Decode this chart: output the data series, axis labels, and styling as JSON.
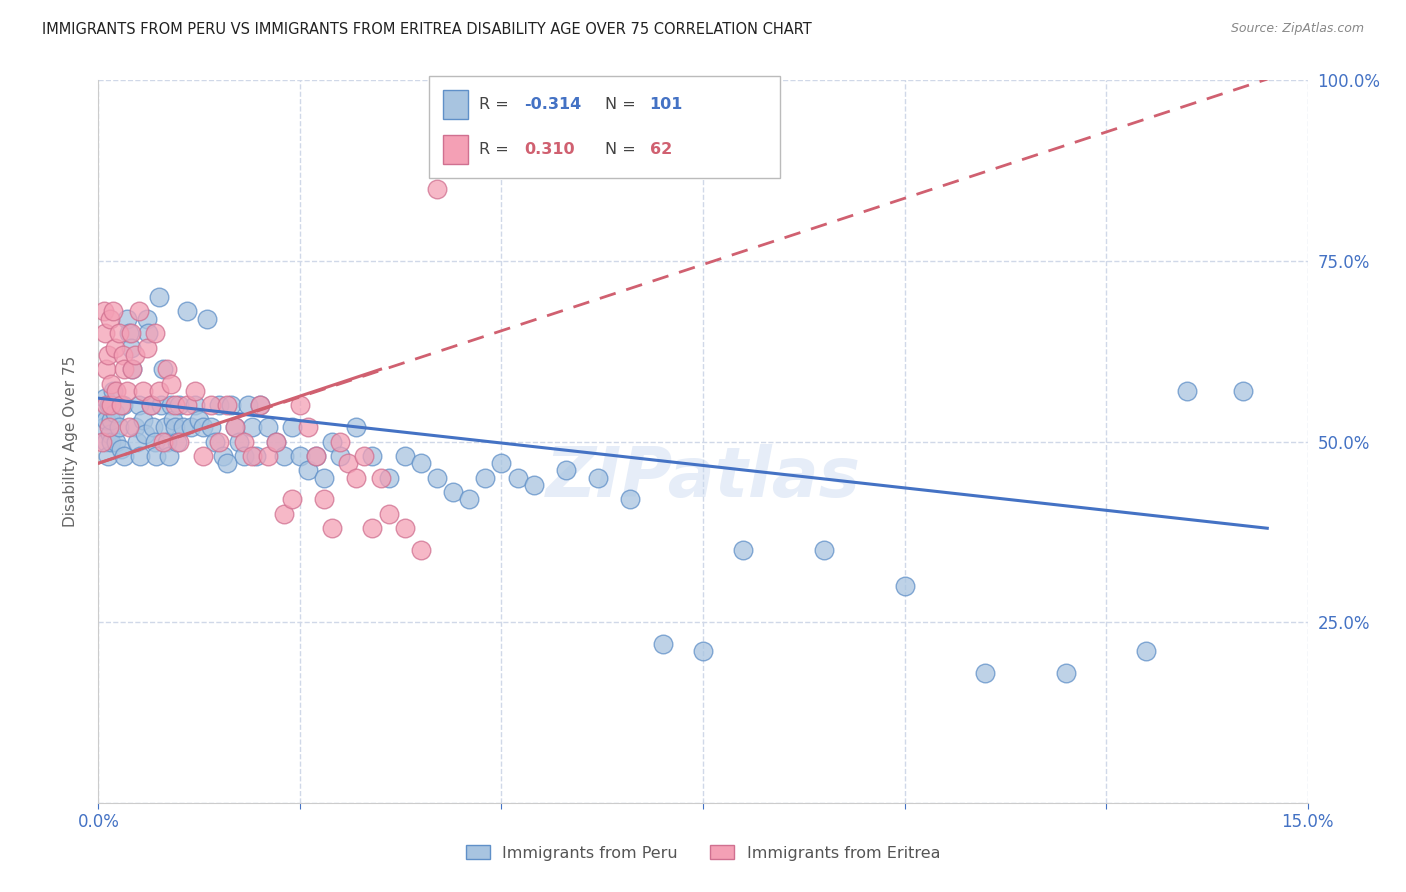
{
  "title": "IMMIGRANTS FROM PERU VS IMMIGRANTS FROM ERITREA DISABILITY AGE OVER 75 CORRELATION CHART",
  "source": "Source: ZipAtlas.com",
  "ylabel": "Disability Age Over 75",
  "legend_labels": [
    "Immigrants from Peru",
    "Immigrants from Eritrea"
  ],
  "color_peru": "#a8c4e0",
  "color_eritrea": "#f4a0b5",
  "color_peru_edge": "#6090c8",
  "color_eritrea_edge": "#d07090",
  "color_peru_line": "#4472c4",
  "color_eritrea_line": "#d06070",
  "color_axis_labels": "#4472c4",
  "watermark": "ZIPatlas",
  "xlim": [
    0.0,
    15.0
  ],
  "ylim": [
    0.0,
    100.0
  ],
  "peru_line_x0": 0.0,
  "peru_line_y0": 56.0,
  "peru_line_x1": 14.5,
  "peru_line_y1": 38.0,
  "eritrea_solid_x0": 0.0,
  "eritrea_solid_y0": 47.0,
  "eritrea_solid_x1": 3.5,
  "eritrea_solid_y1": 60.0,
  "eritrea_dash_x0": 0.0,
  "eritrea_dash_y0": 47.0,
  "eritrea_dash_x1": 15.0,
  "eritrea_dash_y1": 102.0,
  "background_color": "#ffffff",
  "grid_color": "#d0d8e8",
  "peru_x": [
    0.05,
    0.07,
    0.08,
    0.09,
    0.1,
    0.12,
    0.13,
    0.14,
    0.15,
    0.16,
    0.18,
    0.2,
    0.22,
    0.25,
    0.28,
    0.3,
    0.32,
    0.35,
    0.38,
    0.4,
    0.42,
    0.45,
    0.48,
    0.5,
    0.52,
    0.55,
    0.58,
    0.6,
    0.62,
    0.65,
    0.68,
    0.7,
    0.72,
    0.75,
    0.78,
    0.8,
    0.82,
    0.85,
    0.88,
    0.9,
    0.92,
    0.95,
    0.98,
    1.0,
    1.05,
    1.1,
    1.15,
    1.2,
    1.25,
    1.3,
    1.35,
    1.4,
    1.45,
    1.5,
    1.55,
    1.6,
    1.65,
    1.7,
    1.75,
    1.8,
    1.85,
    1.9,
    1.95,
    2.0,
    2.1,
    2.2,
    2.3,
    2.4,
    2.5,
    2.6,
    2.7,
    2.8,
    2.9,
    3.0,
    3.2,
    3.4,
    3.6,
    3.8,
    4.0,
    4.2,
    4.4,
    4.6,
    4.8,
    5.0,
    5.2,
    5.4,
    5.8,
    6.2,
    6.6,
    7.0,
    7.5,
    8.0,
    9.0,
    10.0,
    11.0,
    12.0,
    13.0,
    13.5,
    14.2
  ],
  "peru_y": [
    54,
    52,
    56,
    50,
    53,
    48,
    55,
    51,
    50,
    53,
    57,
    54,
    50,
    52,
    49,
    55,
    48,
    67,
    65,
    63,
    60,
    52,
    50,
    55,
    48,
    53,
    51,
    67,
    65,
    55,
    52,
    50,
    48,
    70,
    55,
    60,
    52,
    50,
    48,
    55,
    53,
    52,
    50,
    55,
    52,
    68,
    52,
    55,
    53,
    52,
    67,
    52,
    50,
    55,
    48,
    47,
    55,
    52,
    50,
    48,
    55,
    52,
    48,
    55,
    52,
    50,
    48,
    52,
    48,
    46,
    48,
    45,
    50,
    48,
    52,
    48,
    45,
    48,
    47,
    45,
    43,
    42,
    45,
    47,
    45,
    44,
    46,
    45,
    42,
    22,
    21,
    35,
    35,
    30,
    18,
    18,
    21,
    57,
    57
  ],
  "eritrea_x": [
    0.05,
    0.07,
    0.08,
    0.09,
    0.1,
    0.12,
    0.13,
    0.14,
    0.15,
    0.16,
    0.18,
    0.2,
    0.22,
    0.25,
    0.28,
    0.3,
    0.32,
    0.35,
    0.38,
    0.4,
    0.42,
    0.45,
    0.5,
    0.55,
    0.6,
    0.65,
    0.7,
    0.75,
    0.8,
    0.85,
    0.9,
    0.95,
    1.0,
    1.1,
    1.2,
    1.3,
    1.4,
    1.5,
    1.6,
    1.7,
    1.8,
    1.9,
    2.0,
    2.1,
    2.2,
    2.3,
    2.4,
    2.5,
    2.6,
    2.7,
    2.8,
    2.9,
    3.0,
    3.1,
    3.2,
    3.3,
    3.4,
    3.5,
    3.6,
    3.8,
    4.0,
    4.2
  ],
  "eritrea_y": [
    50,
    68,
    65,
    55,
    60,
    62,
    52,
    67,
    58,
    55,
    68,
    63,
    57,
    65,
    55,
    62,
    60,
    57,
    52,
    65,
    60,
    62,
    68,
    57,
    63,
    55,
    65,
    57,
    50,
    60,
    58,
    55,
    50,
    55,
    57,
    48,
    55,
    50,
    55,
    52,
    50,
    48,
    55,
    48,
    50,
    40,
    42,
    55,
    52,
    48,
    42,
    38,
    50,
    47,
    45,
    48,
    38,
    45,
    40,
    38,
    35,
    85
  ]
}
